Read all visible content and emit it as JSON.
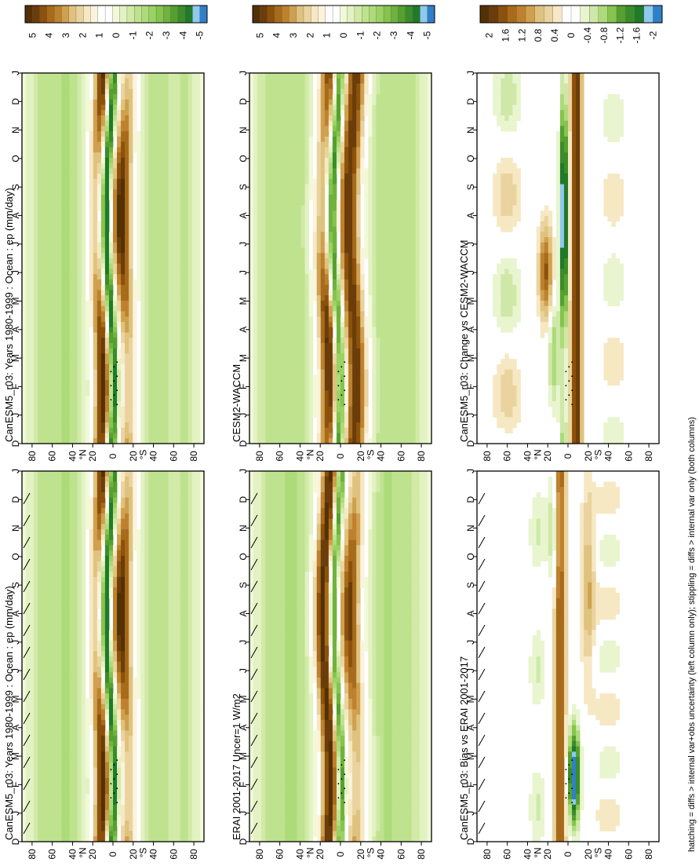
{
  "figure": {
    "footnote": "hatching = diffs > internal var+obs uncertainty (left column only); stippling = diffs > internal var only (both columns)"
  },
  "colorbars": {
    "precip": {
      "labels": [
        "5",
        "4",
        "3",
        "2",
        "1",
        "0",
        "-1",
        "-2",
        "-3",
        "-4",
        "-5"
      ],
      "colors": [
        "#543005",
        "#6b3d0b",
        "#8c510a",
        "#a76b1b",
        "#bf812d",
        "#cfa04f",
        "#dfc27d",
        "#ead39e",
        "#f6e8c3",
        "#fbf3dd",
        "#ffffff",
        "#ffffff",
        "#f1f9d8",
        "#e2f2c2",
        "#d1eaa8",
        "#bfe28f",
        "#addb7a",
        "#9ad264",
        "#86c34f",
        "#6fb23f",
        "#55a02f",
        "#3b8c2a",
        "#1f7a2a",
        "#8ec9ee",
        "#2f80c8"
      ]
    },
    "diff": {
      "labels": [
        "2",
        "1.6",
        "1.2",
        "0.8",
        "0.4",
        "0",
        "-0.4",
        "-0.8",
        "-1.2",
        "-1.6",
        "-2"
      ],
      "colors": [
        "#543005",
        "#6b3d0b",
        "#8c510a",
        "#a76b1b",
        "#bf812d",
        "#cfa04f",
        "#dfc27d",
        "#ead39e",
        "#f6e8c3",
        "#ffffff",
        "#ffffff",
        "#e8f5cf",
        "#cfe8a8",
        "#addb7a",
        "#86c34f",
        "#55a02f",
        "#3b8c2a",
        "#1f7a2a",
        "#8ec9ee",
        "#2f80c8"
      ]
    }
  },
  "chart_data": [
    {
      "type": "heatmap",
      "title": "CanESM5_r03: Years 1980-1999 : Ocean : ep (mm/day)",
      "x": [
        "D",
        "J",
        "F",
        "M",
        "A",
        "M",
        "J",
        "J",
        "A",
        "S",
        "O",
        "N",
        "D",
        "J"
      ],
      "y": [
        "80",
        "60",
        "40",
        "20",
        "0",
        "20",
        "40",
        "60",
        "80"
      ],
      "y_hemisphere_labels": [
        "N",
        "S"
      ],
      "colorbar": "precip",
      "hatching": true,
      "field": "canesm"
    },
    {
      "type": "heatmap",
      "title": "CanESM5_r03: Years 1980-1999 : Ocean : ep (mm/day)",
      "x": [
        "D",
        "J",
        "F",
        "M",
        "A",
        "M",
        "J",
        "J",
        "A",
        "S",
        "O",
        "N",
        "D",
        "J"
      ],
      "y": [
        "80",
        "60",
        "40",
        "20",
        "0",
        "20",
        "40",
        "60",
        "80"
      ],
      "y_hemisphere_labels": [
        "N",
        "S"
      ],
      "colorbar": "precip",
      "hatching": false,
      "field": "canesm"
    },
    {
      "type": "heatmap",
      "title": "ERAI 2001-2017 Uncer=1 W/m2",
      "x": [
        "D",
        "J",
        "F",
        "M",
        "A",
        "M",
        "J",
        "J",
        "A",
        "S",
        "O",
        "N",
        "D",
        "J"
      ],
      "y": [
        "80",
        "60",
        "40",
        "20",
        "0",
        "20",
        "40",
        "60",
        "80"
      ],
      "y_hemisphere_labels": [
        "N",
        "S"
      ],
      "colorbar": "precip",
      "hatching": true,
      "field": "erai"
    },
    {
      "type": "heatmap",
      "title": "CESM2-WACCM",
      "x": [
        "D",
        "J",
        "F",
        "M",
        "A",
        "M",
        "J",
        "J",
        "A",
        "S",
        "O",
        "N",
        "D",
        "J"
      ],
      "y": [
        "80",
        "60",
        "40",
        "20",
        "0",
        "20",
        "40",
        "60",
        "80"
      ],
      "y_hemisphere_labels": [
        "N",
        "S"
      ],
      "colorbar": "precip",
      "hatching": false,
      "field": "cesm"
    },
    {
      "type": "heatmap",
      "title": "CanESM5_r03: Bias vs ERAI 2001-2017",
      "x": [
        "D",
        "J",
        "F",
        "M",
        "A",
        "M",
        "J",
        "J",
        "A",
        "S",
        "O",
        "N",
        "D",
        "J"
      ],
      "y": [
        "80",
        "60",
        "40",
        "20",
        "0",
        "20",
        "40",
        "60",
        "80"
      ],
      "y_hemisphere_labels": [
        "N",
        "S"
      ],
      "colorbar": "diff",
      "hatching": true,
      "field": "bias"
    },
    {
      "type": "heatmap",
      "title": "CanESM5_r03: Change vs CESM2-WACCM",
      "x": [
        "D",
        "J",
        "F",
        "M",
        "A",
        "M",
        "J",
        "J",
        "A",
        "S",
        "O",
        "N",
        "D",
        "J"
      ],
      "y": [
        "80",
        "60",
        "40",
        "20",
        "0",
        "20",
        "40",
        "60",
        "80"
      ],
      "y_hemisphere_labels": [
        "N",
        "S"
      ],
      "colorbar": "diff",
      "hatching": false,
      "field": "change"
    }
  ]
}
